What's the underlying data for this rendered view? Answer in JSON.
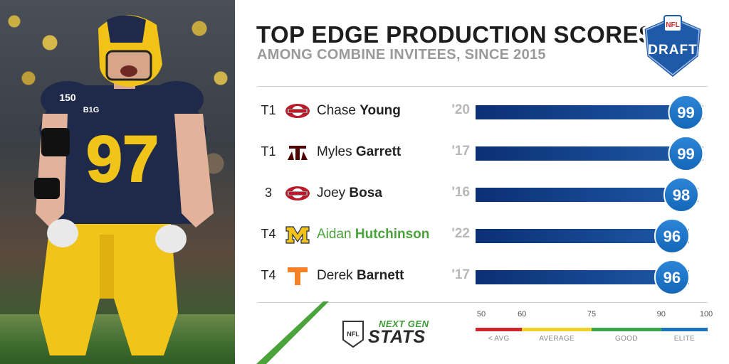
{
  "title": "TOP EDGE PRODUCTION SCORES",
  "subtitle": "AMONG COMBINE INVITEES, SINCE 2015",
  "draft_logo": {
    "top_text": "NFL",
    "text": "DRAFT",
    "color": "#1e5aa8"
  },
  "photo": {
    "jersey_number": "97",
    "jersey_patch": "150",
    "conference_patch": "B1G"
  },
  "chart_data": {
    "type": "bar",
    "title": "TOP EDGE PRODUCTION SCORES",
    "subtitle": "AMONG COMBINE INVITEES, SINCE 2015",
    "xlim": [
      50,
      100
    ],
    "bar_color": "#1e5aa8",
    "rows": [
      {
        "rank": "T1",
        "first": "Chase",
        "last": "Young",
        "school_icon": "ohio-state-logo",
        "year": "'20",
        "score": 99,
        "highlight": false
      },
      {
        "rank": "T1",
        "first": "Myles",
        "last": "Garrett",
        "school_icon": "texas-am-logo",
        "year": "'17",
        "score": 99,
        "highlight": false
      },
      {
        "rank": "3",
        "first": "Joey",
        "last": "Bosa",
        "school_icon": "ohio-state-logo",
        "year": "'16",
        "score": 98,
        "highlight": false
      },
      {
        "rank": "T4",
        "first": "Aidan",
        "last": "Hutchinson",
        "school_icon": "michigan-logo",
        "year": "'22",
        "score": 96,
        "highlight": true
      },
      {
        "rank": "T4",
        "first": "Derek",
        "last": "Barnett",
        "school_icon": "tennessee-logo",
        "year": "'17",
        "score": 96,
        "highlight": false
      }
    ],
    "scale": {
      "ticks": [
        "50",
        "60",
        "75",
        "90",
        "100"
      ],
      "tick_values": [
        50,
        60,
        75,
        90,
        100
      ],
      "bands": [
        {
          "label": "< AVG",
          "from": 50,
          "to": 60,
          "color": "#d0262b"
        },
        {
          "label": "AVERAGE",
          "from": 60,
          "to": 75,
          "color": "#f3d12b"
        },
        {
          "label": "GOOD",
          "from": 75,
          "to": 90,
          "color": "#3aa84a"
        },
        {
          "label": "ELITE",
          "from": 90,
          "to": 100,
          "color": "#1e73be"
        }
      ]
    },
    "highlight_color": "#4aa33b"
  },
  "footer": {
    "brand_top": "NEXT GEN",
    "brand_bottom": "STATS"
  }
}
